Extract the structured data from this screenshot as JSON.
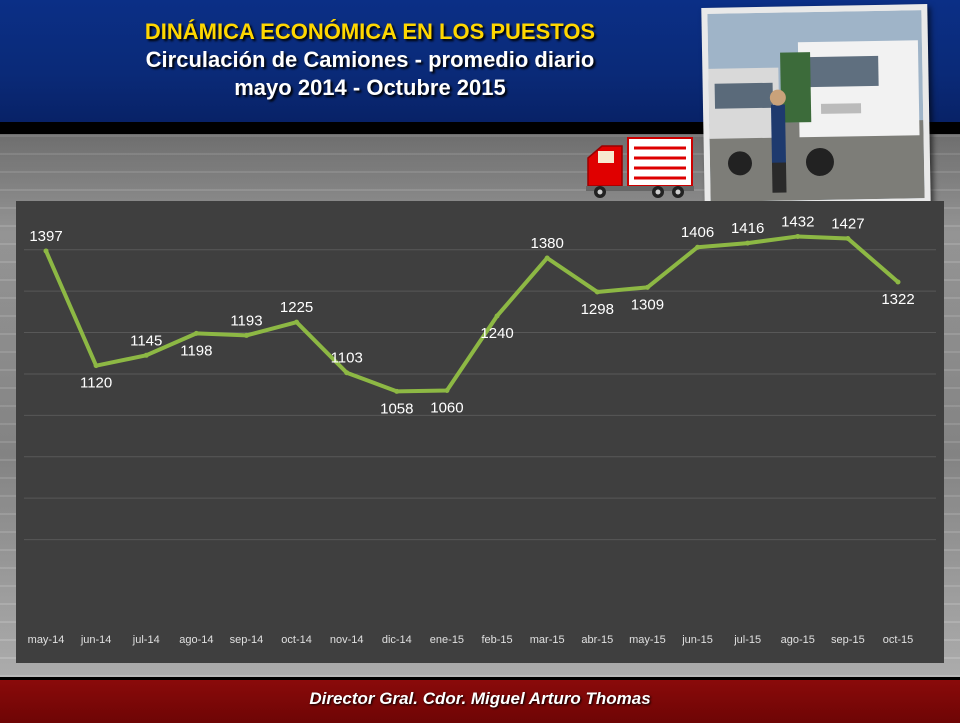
{
  "header": {
    "title_line1": "DINÁMICA ECONÓMICA EN LOS PUESTOS",
    "title_line2": "Circulación de Camiones - promedio diario",
    "title_line3": "mayo 2014 - Octubre 2015"
  },
  "footer": {
    "text": "Director Gral.  Cdor. Miguel Arturo Thomas"
  },
  "icons": {
    "truck": "truck-icon",
    "photo": "truck-photo"
  },
  "colors": {
    "line": "#8db844",
    "panel": "#3f3f3f",
    "header": "#0b2f86",
    "title_accent": "#ffd700",
    "footer": "#7a0808"
  },
  "chart_data": {
    "type": "line",
    "title": "",
    "xlabel": "",
    "ylabel": "",
    "categories": [
      "may-14",
      "jun-14",
      "jul-14",
      "ago-14",
      "sep-14",
      "oct-14",
      "nov-14",
      "dic-14",
      "ene-15",
      "feb-15",
      "mar-15",
      "abr-15",
      "may-15",
      "jun-15",
      "jul-15",
      "ago-15",
      "sep-15",
      "oct-15"
    ],
    "series": [
      {
        "values": [
          1397,
          1120,
          1145,
          1198,
          1193,
          1225,
          1103,
          1058,
          1060,
          1240,
          1380,
          1298,
          1309,
          1406,
          1416,
          1432,
          1427,
          1322
        ]
      }
    ],
    "ylim": [
      600,
      1450
    ],
    "grid": true
  }
}
